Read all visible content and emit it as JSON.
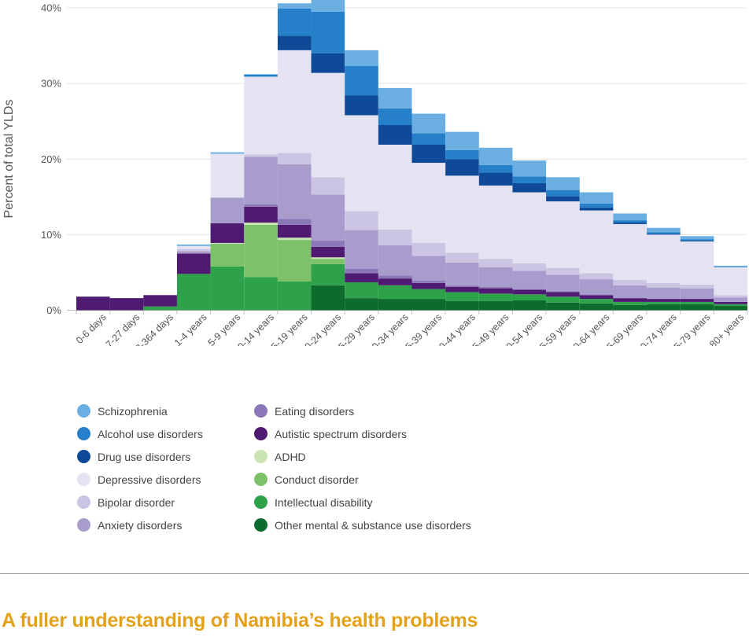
{
  "chart_data": {
    "type": "stacked bar",
    "ylabel": "Percent of total YLDs",
    "yticks": [
      "0%",
      "10%",
      "20%",
      "30%",
      "40%"
    ],
    "ylim": [
      0,
      40
    ],
    "categories": [
      "0-6 days",
      "7-27 days",
      "28-364 days",
      "1-4 years",
      "5-9 years",
      "10-14 years",
      "15-19 years",
      "20-24 years",
      "25-29 years",
      "30-34 years",
      "35-39 years",
      "40-44 years",
      "45-49 years",
      "50-54 years",
      "55-59 years",
      "60-64 years",
      "65-69 years",
      "70-74 years",
      "75-79 years",
      "80+ years"
    ],
    "series": [
      {
        "name": "Other mental & substance use disorders",
        "color": "#0d6b2e",
        "values": [
          0,
          0,
          0,
          0,
          0,
          0,
          0,
          3.3,
          1.6,
          1.5,
          1.5,
          1.2,
          1.2,
          1.3,
          1.0,
          0.9,
          0.7,
          0.8,
          0.8,
          0.6
        ]
      },
      {
        "name": "Intellectual disability",
        "color": "#2ea24a",
        "values": [
          0,
          0,
          0.5,
          4.8,
          5.8,
          4.4,
          3.8,
          2.8,
          2.1,
          1.8,
          1.3,
          1.2,
          1.0,
          0.8,
          0.8,
          0.6,
          0.4,
          0.3,
          0.3,
          0.2
        ]
      },
      {
        "name": "Conduct disorder",
        "color": "#7dc26b",
        "values": [
          0,
          0,
          0,
          0,
          3.0,
          6.9,
          5.5,
          0.7,
          0,
          0,
          0,
          0,
          0,
          0,
          0,
          0,
          0,
          0,
          0,
          0
        ]
      },
      {
        "name": "ADHD",
        "color": "#c9e3b3",
        "values": [
          0,
          0,
          0,
          0,
          0.1,
          0.3,
          0.3,
          0.2,
          0,
          0,
          0,
          0,
          0,
          0,
          0,
          0,
          0,
          0,
          0,
          0
        ]
      },
      {
        "name": "Autistic spectrum disorders",
        "color": "#4e1a72",
        "values": [
          1.8,
          1.6,
          1.5,
          2.7,
          2.6,
          2.1,
          1.7,
          1.4,
          1.2,
          0.9,
          0.8,
          0.7,
          0.7,
          0.6,
          0.6,
          0.5,
          0.5,
          0.4,
          0.4,
          0.3
        ]
      },
      {
        "name": "Eating disorders",
        "color": "#8b76b8",
        "values": [
          0,
          0,
          0,
          0,
          0,
          0.3,
          0.8,
          0.8,
          0.6,
          0.4,
          0.3,
          0.2,
          0.2,
          0.1,
          0.1,
          0.1,
          0,
          0,
          0,
          0
        ]
      },
      {
        "name": "Anxiety disorders",
        "color": "#a89ccd",
        "values": [
          0,
          0,
          0,
          0.3,
          3.4,
          6.3,
          7.2,
          6.1,
          5.1,
          4.0,
          3.3,
          3.0,
          2.6,
          2.4,
          2.2,
          2.0,
          1.7,
          1.5,
          1.4,
          0.6
        ]
      },
      {
        "name": "Bipolar disorder",
        "color": "#cbc5e3",
        "values": [
          0,
          0,
          0,
          0.3,
          0,
          0.3,
          1.5,
          2.3,
          2.5,
          2.1,
          1.7,
          1.3,
          1.1,
          1.0,
          0.9,
          0.8,
          0.7,
          0.6,
          0.5,
          0.3
        ]
      },
      {
        "name": "Depressive disorders",
        "color": "#e5e3f2",
        "values": [
          0,
          0,
          0,
          0.4,
          5.8,
          10.3,
          13.6,
          13.8,
          12.7,
          11.2,
          10.6,
          10.2,
          9.7,
          9.4,
          8.8,
          8.3,
          7.4,
          6.4,
          5.7,
          3.7
        ]
      },
      {
        "name": "Drug use disorders",
        "color": "#0f4a99",
        "values": [
          0,
          0,
          0,
          0,
          0,
          0,
          1.9,
          2.6,
          2.6,
          2.6,
          2.4,
          2.2,
          1.7,
          1.2,
          0.7,
          0.4,
          0.2,
          0.1,
          0.1,
          0
        ]
      },
      {
        "name": "Alcohol use disorders",
        "color": "#2580c9",
        "values": [
          0,
          0,
          0,
          0,
          0,
          0.3,
          3.6,
          5.5,
          3.9,
          2.2,
          1.5,
          1.2,
          1.0,
          0.9,
          0.8,
          0.5,
          0.3,
          0.2,
          0.2,
          0.1
        ]
      },
      {
        "name": "Schizophrenia",
        "color": "#6aaee2",
        "values": [
          0,
          0,
          0,
          0.2,
          0.2,
          0,
          0.7,
          1.6,
          2.1,
          2.7,
          2.6,
          2.4,
          2.3,
          2.1,
          1.7,
          1.5,
          0.9,
          0.6,
          0.4,
          0.1
        ]
      }
    ]
  },
  "legend": {
    "col1": [
      {
        "label": "Schizophrenia",
        "color": "#6aaee2"
      },
      {
        "label": "Alcohol use disorders",
        "color": "#2580c9"
      },
      {
        "label": "Drug use disorders",
        "color": "#0f4a99"
      },
      {
        "label": "Depressive disorders",
        "color": "#e5e3f2"
      },
      {
        "label": "Bipolar disorder",
        "color": "#cbc5e3"
      },
      {
        "label": "Anxiety disorders",
        "color": "#a89ccd"
      }
    ],
    "col2": [
      {
        "label": "Eating disorders",
        "color": "#8b76b8"
      },
      {
        "label": "Autistic spectrum disorders",
        "color": "#4e1a72"
      },
      {
        "label": "ADHD",
        "color": "#c9e3b3"
      },
      {
        "label": "Conduct disorder",
        "color": "#7dc26b"
      },
      {
        "label": "Intellectual disability",
        "color": "#2ea24a"
      },
      {
        "label": "Other mental & substance use disorders",
        "color": "#0d6b2e"
      }
    ]
  },
  "section_title": "A fuller understanding of Namibia’s health problems"
}
